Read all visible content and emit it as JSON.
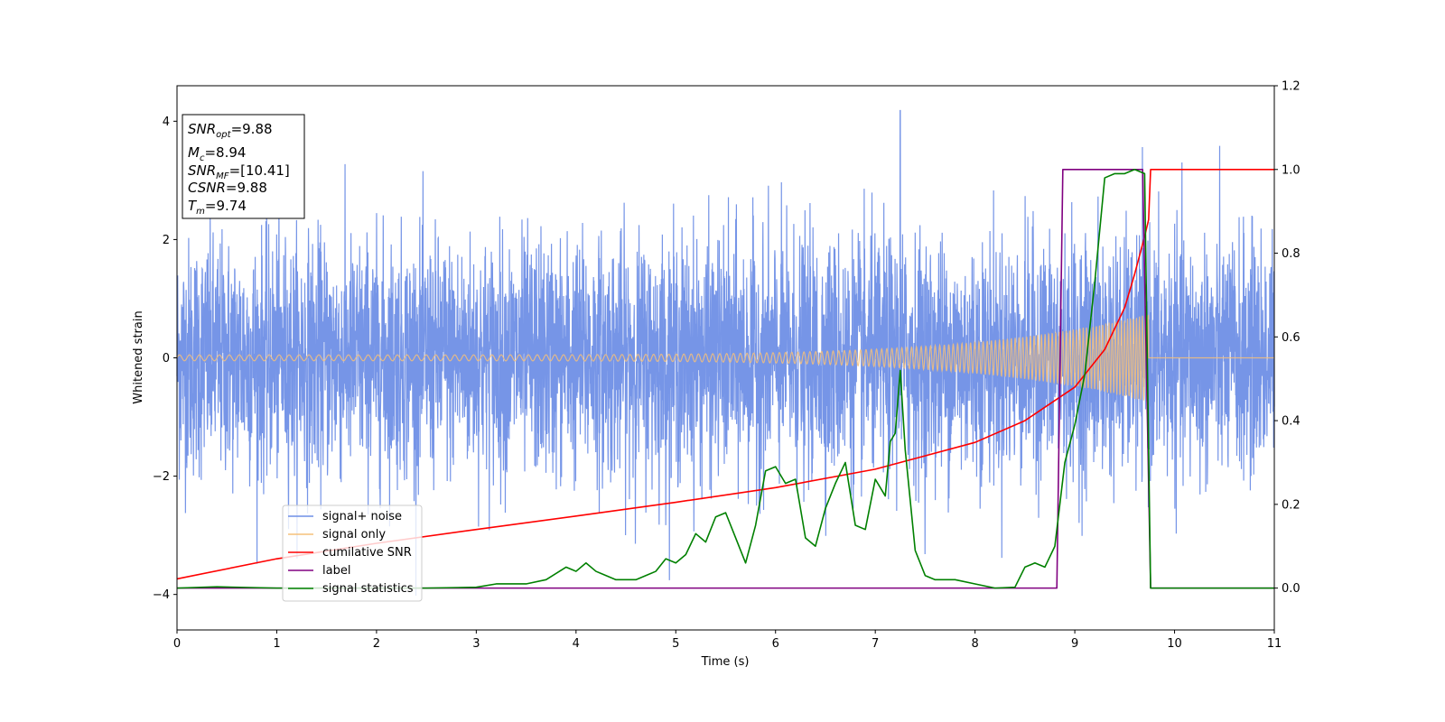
{
  "chart_data": {
    "type": "line",
    "xlabel": "Time (s)",
    "ylabel_left": "Whitened strain",
    "ylabel_right": "",
    "xlim": [
      0,
      11
    ],
    "ylim_left": [
      -4.6,
      4.6
    ],
    "ylim_right": [
      -0.1,
      1.2
    ],
    "xticks": [
      "0",
      "1",
      "2",
      "3",
      "4",
      "5",
      "6",
      "7",
      "8",
      "9",
      "10",
      "11"
    ],
    "yticks_left": [
      "−4",
      "−2",
      "0",
      "2",
      "4"
    ],
    "yticks_right": [
      "0.0",
      "0.2",
      "0.4",
      "0.6",
      "0.8",
      "1.0",
      "1.2"
    ],
    "grid": false,
    "legend_position": "lower-left",
    "info_box": {
      "snr_opt": {
        "base": "SNR",
        "sub": "opt",
        "value": "=9.88"
      },
      "mc": {
        "base": "M",
        "sub": "c",
        "value": "=8.94"
      },
      "snr_mf": {
        "base": "SNR",
        "sub": "MF",
        "value": "=[10.41]"
      },
      "csnr": {
        "base": "CSNR",
        "sub": "",
        "value": "=9.88"
      },
      "tm": {
        "base": "T",
        "sub": "m",
        "value": "=9.74"
      }
    },
    "series": [
      {
        "name": "signal+ noise",
        "axis": "left",
        "color": "#6f8fe6",
        "description_values": "noise with unit variance, envelope peaks about ±4.2",
        "noise_std": 1.0,
        "peak_value": 4.18,
        "peak_time": 7.25
      },
      {
        "name": "signal only",
        "axis": "left",
        "color": "#f5c07a",
        "chirp_start": 0,
        "chirp_end": 9.74,
        "amplitude_start": 0.05,
        "amplitude_end": 0.75
      },
      {
        "name": "cumilative SNR",
        "axis": "right",
        "color": "#ff0000",
        "x": [
          0,
          1,
          2,
          3,
          4,
          5,
          6,
          7,
          8,
          8.5,
          9,
          9.3,
          9.5,
          9.6,
          9.7,
          9.74,
          9.76,
          10,
          11
        ],
        "values": [
          0.022,
          0.07,
          0.107,
          0.14,
          0.172,
          0.205,
          0.24,
          0.284,
          0.348,
          0.4,
          0.48,
          0.57,
          0.67,
          0.75,
          0.84,
          0.88,
          1.0,
          1.0,
          1.0
        ]
      },
      {
        "name": "label",
        "axis": "right",
        "color": "#800080",
        "x": [
          0,
          8.82,
          8.88,
          9.68,
          9.76,
          11
        ],
        "values": [
          0,
          0,
          1,
          1,
          0,
          0
        ]
      },
      {
        "name": "signal statistics",
        "axis": "right",
        "color": "#008000",
        "x": [
          0,
          0.4,
          1,
          2,
          2.5,
          3,
          3.2,
          3.5,
          3.7,
          3.9,
          4.0,
          4.1,
          4.2,
          4.4,
          4.6,
          4.8,
          4.9,
          5.0,
          5.1,
          5.2,
          5.3,
          5.4,
          5.5,
          5.6,
          5.7,
          5.8,
          5.9,
          6.0,
          6.1,
          6.2,
          6.3,
          6.4,
          6.5,
          6.6,
          6.7,
          6.8,
          6.9,
          7.0,
          7.1,
          7.15,
          7.2,
          7.25,
          7.3,
          7.4,
          7.5,
          7.6,
          7.8,
          8.0,
          8.2,
          8.4,
          8.5,
          8.6,
          8.7,
          8.8,
          8.9,
          9.0,
          9.1,
          9.2,
          9.3,
          9.4,
          9.5,
          9.6,
          9.7,
          9.76,
          9.8,
          10,
          11
        ],
        "values": [
          0.0,
          0.003,
          0.0,
          0.0,
          0.0,
          0.002,
          0.01,
          0.01,
          0.02,
          0.05,
          0.04,
          0.06,
          0.04,
          0.02,
          0.02,
          0.04,
          0.07,
          0.06,
          0.08,
          0.13,
          0.11,
          0.17,
          0.18,
          0.12,
          0.06,
          0.15,
          0.28,
          0.29,
          0.25,
          0.26,
          0.12,
          0.1,
          0.19,
          0.25,
          0.3,
          0.15,
          0.14,
          0.26,
          0.22,
          0.35,
          0.37,
          0.52,
          0.33,
          0.09,
          0.03,
          0.02,
          0.02,
          0.01,
          0.0,
          0.002,
          0.05,
          0.06,
          0.05,
          0.1,
          0.3,
          0.39,
          0.51,
          0.73,
          0.98,
          0.99,
          0.99,
          1.0,
          0.99,
          0.0,
          0.0,
          0.0,
          0.0
        ]
      }
    ]
  }
}
